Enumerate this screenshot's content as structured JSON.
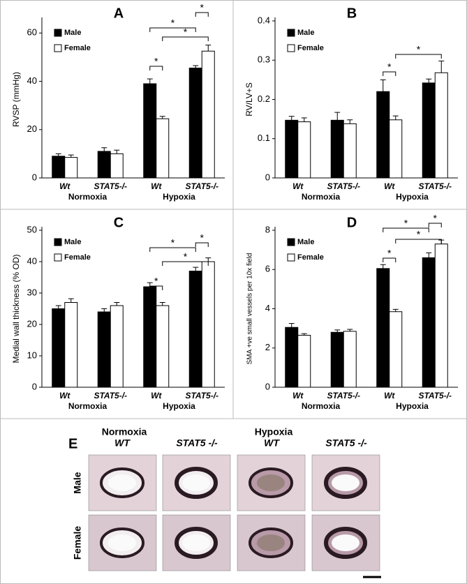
{
  "chart_data": [
    {
      "type": "bar",
      "panel": "A",
      "ylabel": "RVSP (mmHg)",
      "categories": [
        "Wt",
        "STAT5-/-",
        "Wt",
        "STAT5-/-"
      ],
      "groups": [
        "Normoxia",
        "Hypoxia"
      ],
      "series": [
        {
          "name": "Male",
          "color": "#000000",
          "values": [
            9,
            11,
            39,
            45.5
          ],
          "errors": [
            1,
            1.5,
            2,
            1
          ]
        },
        {
          "name": "Female",
          "color": "#ffffff",
          "values": [
            8.5,
            10,
            24.5,
            52.5
          ],
          "errors": [
            1,
            1.5,
            1,
            2.5
          ]
        }
      ],
      "ylim": [
        0,
        65
      ],
      "yticks": [
        0,
        20,
        40,
        60
      ],
      "annotations": [
        "*",
        "*",
        "*",
        "*"
      ]
    },
    {
      "type": "bar",
      "panel": "B",
      "ylabel": "RV/LV+S",
      "categories": [
        "Wt",
        "STAT5-/-",
        "Wt",
        "STAT5-/-"
      ],
      "groups": [
        "Normoxia",
        "Hypoxia"
      ],
      "series": [
        {
          "name": "Male",
          "color": "#000000",
          "values": [
            0.147,
            0.147,
            0.22,
            0.242
          ],
          "errors": [
            0.01,
            0.02,
            0.03,
            0.01
          ]
        },
        {
          "name": "Female",
          "color": "#ffffff",
          "values": [
            0.143,
            0.138,
            0.148,
            0.268
          ],
          "errors": [
            0.01,
            0.01,
            0.01,
            0.03
          ]
        }
      ],
      "ylim": [
        0,
        0.4
      ],
      "yticks": [
        0,
        0.1,
        0.2,
        0.3,
        0.4
      ],
      "annotations": [
        "*",
        "*"
      ]
    },
    {
      "type": "bar",
      "panel": "C",
      "ylabel": "Medial wall thickness (% OD)",
      "categories": [
        "Wt",
        "STAT5-/-",
        "Wt",
        "STAT5-/-"
      ],
      "groups": [
        "Normoxia",
        "Hypoxia"
      ],
      "series": [
        {
          "name": "Male",
          "color": "#000000",
          "values": [
            25,
            24,
            32,
            37
          ],
          "errors": [
            1,
            1,
            1.3,
            1.2
          ]
        },
        {
          "name": "Female",
          "color": "#ffffff",
          "values": [
            27,
            26,
            26,
            40
          ],
          "errors": [
            1.2,
            1,
            1,
            1.2
          ]
        }
      ],
      "ylim": [
        0,
        50
      ],
      "yticks": [
        0,
        10,
        20,
        30,
        40,
        50
      ],
      "annotations": [
        "*",
        "*",
        "*",
        "*"
      ]
    },
    {
      "type": "bar",
      "panel": "D",
      "ylabel": "SMA +ve small vessels per 10x field",
      "categories": [
        "Wt",
        "STAT5-/-",
        "Wt",
        "STAT5-/-"
      ],
      "groups": [
        "Normoxia",
        "Hypoxia"
      ],
      "series": [
        {
          "name": "Male",
          "color": "#000000",
          "values": [
            3.05,
            2.8,
            6.05,
            6.6
          ],
          "errors": [
            0.2,
            0.12,
            0.2,
            0.25
          ]
        },
        {
          "name": "Female",
          "color": "#ffffff",
          "values": [
            2.65,
            2.85,
            3.85,
            7.3
          ],
          "errors": [
            0.08,
            0.1,
            0.12,
            0.2
          ]
        }
      ],
      "ylim": [
        0,
        8
      ],
      "yticks": [
        0,
        2,
        4,
        6,
        8
      ],
      "annotations": [
        "*",
        "*",
        "*",
        "*"
      ]
    }
  ],
  "panel_e": {
    "label": "E",
    "groups": [
      "Normoxia",
      "Hypoxia"
    ],
    "columns": [
      "WT",
      "STAT5 -/-",
      "WT",
      "STAT5 -/-"
    ],
    "rows": [
      "Male",
      "Female"
    ]
  }
}
